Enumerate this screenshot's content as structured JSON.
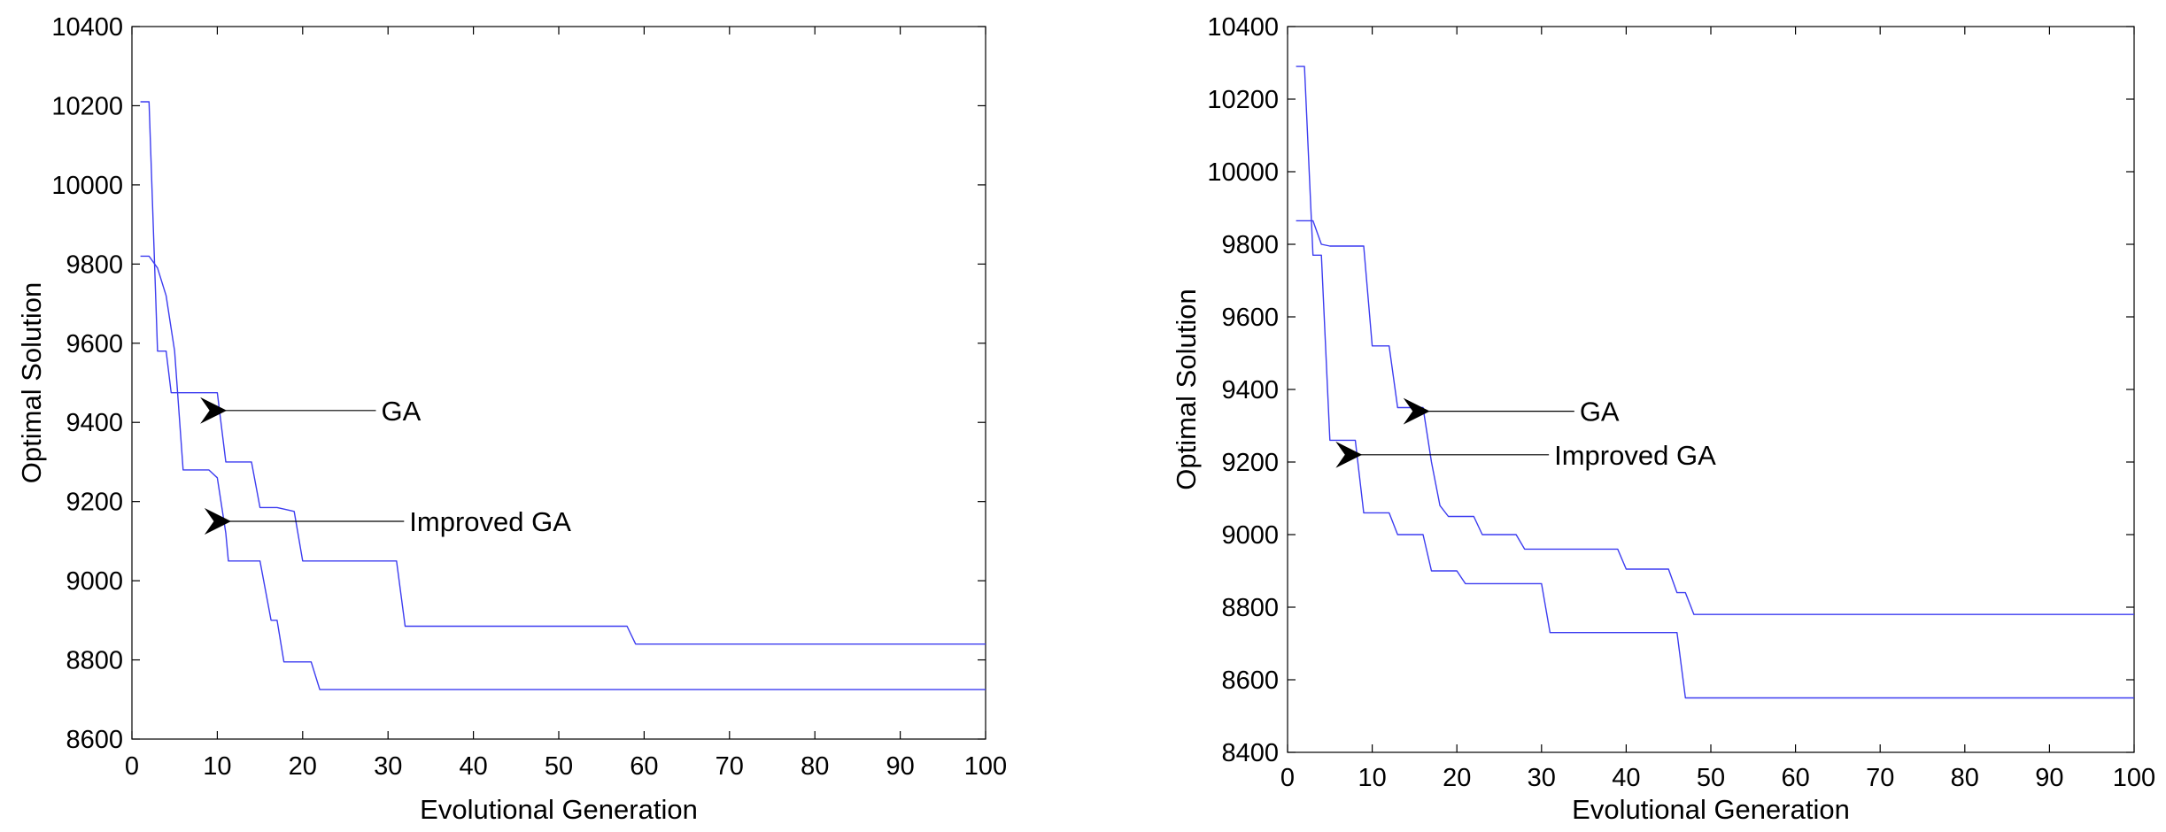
{
  "figure": {
    "colors": {
      "line": "#3c3cf0",
      "axis": "#000000",
      "arrow": "#000000",
      "background": "#ffffff"
    }
  },
  "chart_data": [
    {
      "type": "line",
      "xlabel": "Evolutional Generation",
      "ylabel": "Optimal Solution",
      "xlim": [
        0,
        100
      ],
      "ylim": [
        8600,
        10400
      ],
      "xticks": [
        0,
        10,
        20,
        30,
        40,
        50,
        60,
        70,
        80,
        90,
        100
      ],
      "yticks": [
        8600,
        8800,
        9000,
        9200,
        9400,
        9600,
        9800,
        10000,
        10200,
        10400
      ],
      "grid": false,
      "series": [
        {
          "name": "GA",
          "points": [
            [
              1,
              9820
            ],
            [
              2,
              9820
            ],
            [
              3,
              9790
            ],
            [
              4,
              9720
            ],
            [
              5,
              9580
            ],
            [
              6,
              9280
            ],
            [
              7,
              9280
            ],
            [
              9,
              9280
            ],
            [
              10,
              9260
            ],
            [
              11,
              9120
            ],
            [
              11.3,
              9050
            ],
            [
              15,
              9050
            ],
            [
              16.3,
              8900
            ],
            [
              17,
              8900
            ],
            [
              17.8,
              8795
            ],
            [
              21,
              8795
            ],
            [
              22,
              8725
            ],
            [
              100,
              8725
            ]
          ]
        },
        {
          "name": "Improved GA",
          "points": [
            [
              1,
              10210
            ],
            [
              2,
              10210
            ],
            [
              3,
              9580
            ],
            [
              4,
              9580
            ],
            [
              4.6,
              9475
            ],
            [
              10,
              9475
            ],
            [
              11,
              9300
            ],
            [
              14,
              9300
            ],
            [
              15,
              9185
            ],
            [
              17,
              9185
            ],
            [
              18,
              9180
            ],
            [
              19,
              9175
            ],
            [
              20,
              9050
            ],
            [
              31,
              9050
            ],
            [
              32,
              8885
            ],
            [
              58,
              8885
            ],
            [
              59,
              8840
            ],
            [
              100,
              8840
            ]
          ]
        }
      ],
      "annotations": [
        {
          "text": "GA",
          "x": 29.2,
          "y": 9415,
          "arrow_to": [
            10.8,
            9430
          ]
        },
        {
          "text": "Improved GA",
          "x": 32.5,
          "y": 9140,
          "arrow_to": [
            11.3,
            9150
          ]
        }
      ]
    },
    {
      "type": "line",
      "xlabel": "Evolutional Generation",
      "ylabel": "Optimal Solution",
      "xlim": [
        0,
        100
      ],
      "ylim": [
        8400,
        10400
      ],
      "xticks": [
        0,
        10,
        20,
        30,
        40,
        50,
        60,
        70,
        80,
        90,
        100
      ],
      "yticks": [
        8400,
        8600,
        8800,
        9000,
        9200,
        9400,
        9600,
        9800,
        10000,
        10200,
        10400
      ],
      "grid": false,
      "series": [
        {
          "name": "GA",
          "points": [
            [
              1,
              10290
            ],
            [
              2,
              10290
            ],
            [
              3,
              9770
            ],
            [
              4,
              9770
            ],
            [
              5,
              9260
            ],
            [
              8,
              9260
            ],
            [
              9,
              9060
            ],
            [
              12,
              9060
            ],
            [
              13,
              9000
            ],
            [
              16,
              9000
            ],
            [
              17,
              8900
            ],
            [
              20,
              8900
            ],
            [
              21,
              8865
            ],
            [
              30,
              8865
            ],
            [
              31,
              8730
            ],
            [
              46,
              8730
            ],
            [
              47,
              8550
            ],
            [
              100,
              8550
            ]
          ]
        },
        {
          "name": "Improved GA",
          "points": [
            [
              1,
              9865
            ],
            [
              3,
              9865
            ],
            [
              4,
              9800
            ],
            [
              5,
              9795
            ],
            [
              9,
              9795
            ],
            [
              10,
              9520
            ],
            [
              12,
              9520
            ],
            [
              13,
              9350
            ],
            [
              16,
              9350
            ],
            [
              17,
              9200
            ],
            [
              18,
              9080
            ],
            [
              19,
              9050
            ],
            [
              22,
              9050
            ],
            [
              23,
              9000
            ],
            [
              27,
              9000
            ],
            [
              28,
              8960
            ],
            [
              39,
              8960
            ],
            [
              40,
              8905
            ],
            [
              45,
              8905
            ],
            [
              46,
              8840
            ],
            [
              47,
              8840
            ],
            [
              48,
              8780
            ],
            [
              100,
              8780
            ]
          ]
        }
      ],
      "annotations": [
        {
          "text": "GA",
          "x": 34.5,
          "y": 9330,
          "arrow_to": [
            16.5,
            9340
          ]
        },
        {
          "text": "Improved GA",
          "x": 31.5,
          "y": 9220,
          "arrow_to": [
            8.5,
            9220
          ]
        }
      ]
    }
  ]
}
